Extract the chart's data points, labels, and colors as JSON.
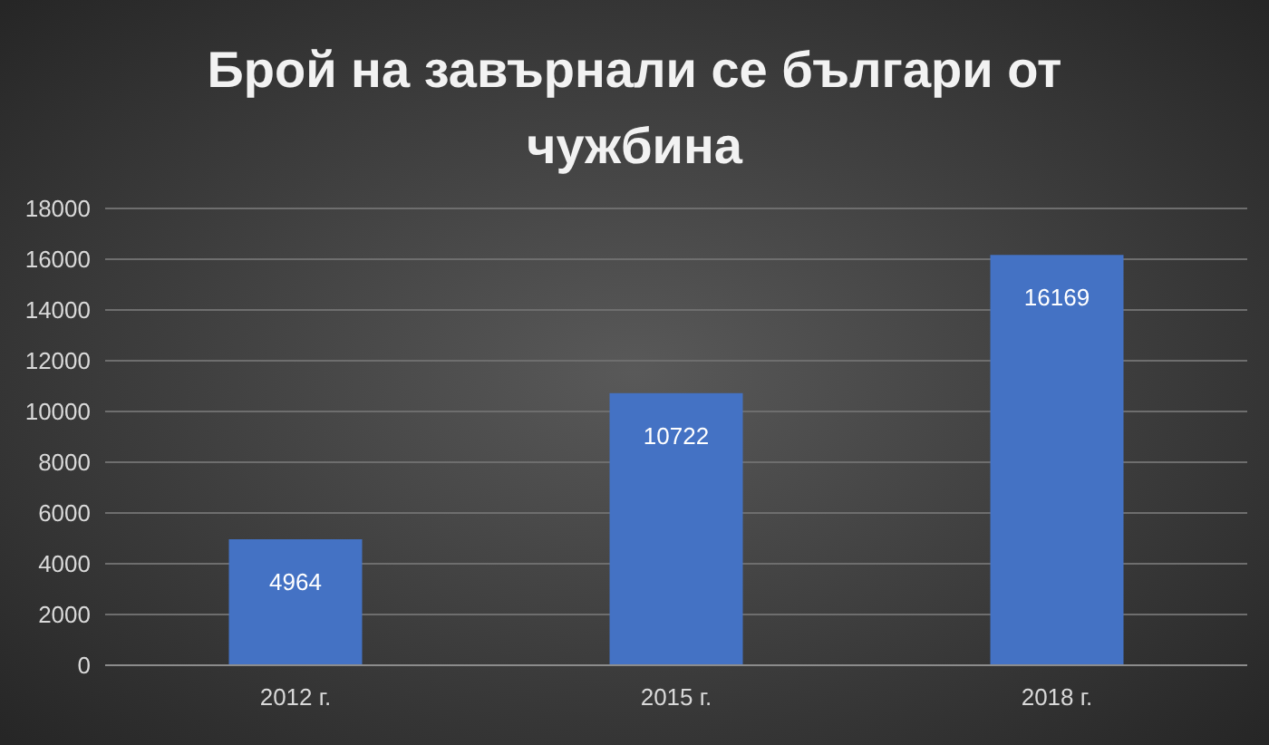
{
  "chart_data": {
    "type": "bar",
    "title": "Брой на завърнали се българи от чужбина",
    "categories": [
      "2012 г.",
      "2015 г.",
      "2018 г."
    ],
    "values": [
      4964,
      10722,
      16169
    ],
    "color": "#4472c4",
    "ylim": [
      0,
      18000
    ],
    "yticks": [
      0,
      2000,
      4000,
      6000,
      8000,
      10000,
      12000,
      14000,
      16000,
      18000
    ],
    "grid": "y",
    "data_labels": true
  }
}
